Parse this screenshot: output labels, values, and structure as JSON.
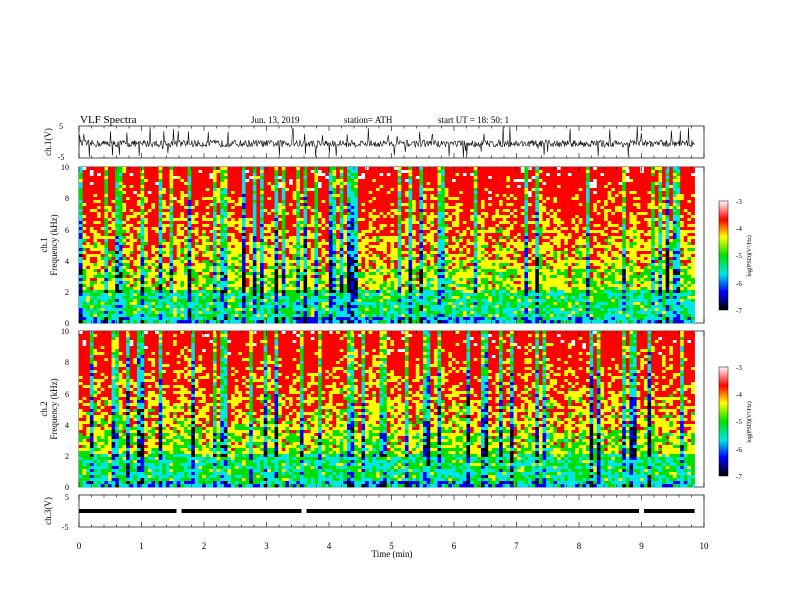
{
  "header": {
    "title": "VLF Spectra",
    "date": "Jun. 13, 2019",
    "station": "station= ATH",
    "start": "start UT = 18: 50: 1"
  },
  "colors": {
    "scale": [
      "#000000",
      "#0000ff",
      "#00e5e5",
      "#00e000",
      "#ffff00",
      "#ff0000",
      "#ffffff"
    ]
  },
  "chart_data": [
    {
      "type": "line",
      "panel": "ch1-waveform",
      "ylabel": "ch.1(V)",
      "ylim": [
        -5,
        5
      ],
      "yticks": [
        "5",
        "-5"
      ],
      "xlim": [
        0,
        10
      ],
      "trace": "noisy waveform, baseline about -0.5 V, occasional spikes to about +/-5 V"
    },
    {
      "type": "heatmap",
      "panel": "ch1-spectrogram",
      "ylabel_line1": "ch.1",
      "ylabel_line2": "Frequency (kHz)",
      "ylim": [
        0,
        10
      ],
      "yticks": [
        "0",
        "2",
        "4",
        "6",
        "8",
        "10"
      ],
      "xlim": [
        0,
        10
      ],
      "colorbar": {
        "label": "log(PSD)(V²/Hz)",
        "range": [
          -7,
          -3
        ],
        "ticks": [
          "-3",
          "-4",
          "-5",
          "-6",
          "-7"
        ]
      }
    },
    {
      "type": "heatmap",
      "panel": "ch2-spectrogram",
      "ylabel_line1": "ch.2",
      "ylabel_line2": "Frequency (kHz)",
      "ylim": [
        0,
        10
      ],
      "yticks": [
        "0",
        "2",
        "4",
        "6",
        "8",
        "10"
      ],
      "xlim": [
        0,
        10
      ],
      "colorbar": {
        "label": "log(PSD)(V²/Hz)",
        "range": [
          -7,
          -3
        ],
        "ticks": [
          "-3",
          "-4",
          "-5",
          "-6",
          "-7"
        ]
      }
    },
    {
      "type": "line",
      "panel": "ch3-waveform",
      "ylabel": "ch.3(V)",
      "ylim": [
        -5,
        5
      ],
      "yticks": [
        "5",
        "-5"
      ],
      "xlim": [
        0,
        10
      ],
      "constant_value": 0,
      "gaps_at_min": [
        1.6,
        3.6,
        9.0
      ]
    }
  ],
  "xaxis": {
    "label": "Time (min)",
    "ticks": [
      "0",
      "1",
      "2",
      "3",
      "4",
      "5",
      "6",
      "7",
      "8",
      "9",
      "10"
    ]
  }
}
